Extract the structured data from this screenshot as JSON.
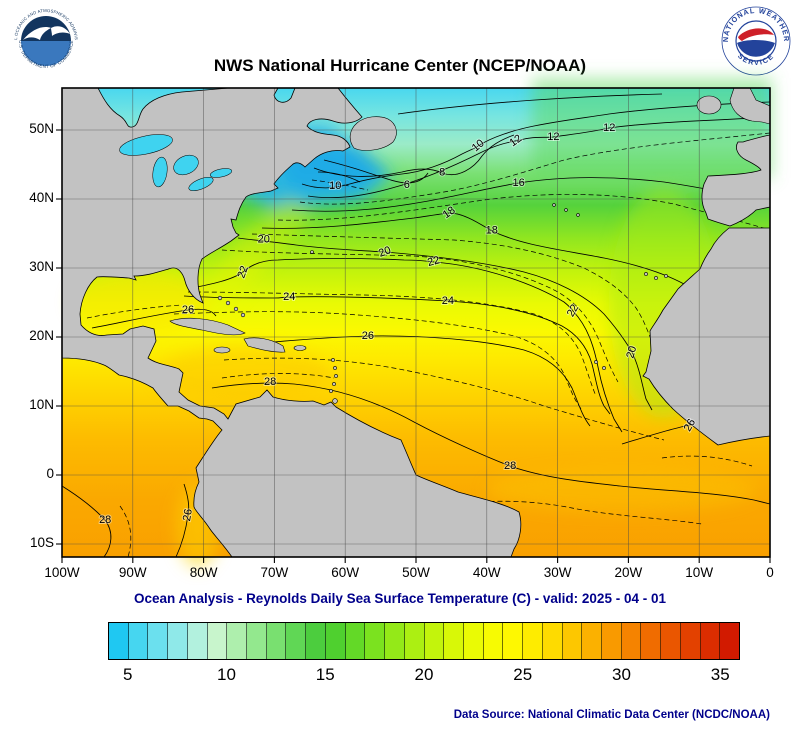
{
  "header": {
    "title": "NWS National Hurricane Center (NCEP/NOAA)",
    "noaa_ring_top": "NATIONAL OCEANIC AND ATMOSPHERIC ADMINISTRATION",
    "noaa_ring_bottom": "U.S. DEPARTMENT OF COMMERCE",
    "nws_ring_top": "NATIONAL WEATHER",
    "nws_ring_bottom": "SERVICE"
  },
  "caption": "Ocean Analysis - Reynolds Daily Sea Surface Temperature (C) - valid: 2025 - 04 - 01",
  "footer": {
    "data_source": "Data Source: National Climatic Data Center (NCDC/NOAA)"
  },
  "map": {
    "lat_ticks": [
      {
        "value": 50,
        "label": "50N"
      },
      {
        "value": 40,
        "label": "40N"
      },
      {
        "value": 30,
        "label": "30N"
      },
      {
        "value": 20,
        "label": "20N"
      },
      {
        "value": 10,
        "label": "10N"
      },
      {
        "value": 0,
        "label": "0"
      },
      {
        "value": -10,
        "label": "10S"
      }
    ],
    "lon_ticks": [
      {
        "value": 100,
        "label": "100W"
      },
      {
        "value": 90,
        "label": "90W"
      },
      {
        "value": 80,
        "label": "80W"
      },
      {
        "value": 70,
        "label": "70W"
      },
      {
        "value": 60,
        "label": "60W"
      },
      {
        "value": 50,
        "label": "50W"
      },
      {
        "value": 40,
        "label": "40W"
      },
      {
        "value": 30,
        "label": "30W"
      },
      {
        "value": 20,
        "label": "20W"
      },
      {
        "value": 10,
        "label": "10W"
      },
      {
        "value": 0,
        "label": "0"
      }
    ],
    "contour_labels": [
      {
        "text": "10",
        "lon": 61.4,
        "lat": 41.9,
        "rot": 0
      },
      {
        "text": "6",
        "lon": 51.3,
        "lat": 42.0,
        "rot": 0
      },
      {
        "text": "8",
        "lon": 46.3,
        "lat": 43.8,
        "rot": 0
      },
      {
        "text": "10",
        "lon": 41.2,
        "lat": 47.7,
        "rot": -40
      },
      {
        "text": "12",
        "lon": 35.9,
        "lat": 48.4,
        "rot": -35
      },
      {
        "text": "12",
        "lon": 30.6,
        "lat": 49.0,
        "rot": 0
      },
      {
        "text": "12",
        "lon": 22.7,
        "lat": 50.3,
        "rot": 0
      },
      {
        "text": "16",
        "lon": 35.5,
        "lat": 42.3,
        "rot": 0
      },
      {
        "text": "18",
        "lon": 45.3,
        "lat": 38.0,
        "rot": -35
      },
      {
        "text": "18",
        "lon": 39.3,
        "lat": 35.4,
        "rot": 0
      },
      {
        "text": "20",
        "lon": 71.5,
        "lat": 34.1,
        "rot": 0
      },
      {
        "text": "20",
        "lon": 54.4,
        "lat": 32.3,
        "rot": -20
      },
      {
        "text": "22",
        "lon": 74.4,
        "lat": 29.4,
        "rot": -70
      },
      {
        "text": "22",
        "lon": 47.5,
        "lat": 30.9,
        "rot": -15
      },
      {
        "text": "22",
        "lon": 27.8,
        "lat": 23.8,
        "rot": -60
      },
      {
        "text": "24",
        "lon": 67.9,
        "lat": 25.8,
        "rot": 0
      },
      {
        "text": "24",
        "lon": 45.5,
        "lat": 25.2,
        "rot": 0
      },
      {
        "text": "26",
        "lon": 82.2,
        "lat": 23.9,
        "rot": 0
      },
      {
        "text": "26",
        "lon": 56.8,
        "lat": 20.1,
        "rot": 0
      },
      {
        "text": "20",
        "lon": 19.5,
        "lat": 17.8,
        "rot": -75
      },
      {
        "text": "28",
        "lon": 70.6,
        "lat": 13.5,
        "rot": 0
      },
      {
        "text": "28",
        "lon": 36.7,
        "lat": 1.3,
        "rot": 0
      },
      {
        "text": "26",
        "lon": 11.3,
        "lat": 7.2,
        "rot": -60
      },
      {
        "text": "28",
        "lon": 93.9,
        "lat": -6.5,
        "rot": 0
      },
      {
        "text": "26",
        "lon": 82.2,
        "lat": -5.8,
        "rot": -80
      }
    ]
  },
  "colorbar": {
    "min": 4,
    "max": 36,
    "tick_values": [
      5,
      10,
      15,
      20,
      25,
      30,
      35
    ],
    "colors": [
      "#1FC8F2",
      "#46D6F0",
      "#6BE0EE",
      "#8FE9E9",
      "#B2F1DE",
      "#C8F5CC",
      "#AEEFAD",
      "#93E88E",
      "#79E070",
      "#60D755",
      "#4CCD3E",
      "#4FD02F",
      "#63D927",
      "#7BE21F",
      "#94E918",
      "#ACEF12",
      "#C3F40C",
      "#D8F807",
      "#EAFB04",
      "#F7FB02",
      "#FEF801",
      "#FEEC00",
      "#FEDB00",
      "#FDC700",
      "#FBB100",
      "#F99A00",
      "#F58300",
      "#F06C00",
      "#EA5600",
      "#E34100",
      "#DB2D00",
      "#D21A00"
    ]
  },
  "chart_data": {
    "type": "heatmap",
    "title": "NWS National Hurricane Center (NCEP/NOAA)",
    "subtitle": "Ocean Analysis - Reynolds Daily Sea Surface Temperature (C) - valid: 2025 - 04 - 01",
    "units": "C",
    "x_ticks": [
      "100W",
      "90W",
      "80W",
      "70W",
      "60W",
      "50W",
      "40W",
      "30W",
      "20W",
      "10W",
      "0"
    ],
    "y_ticks": [
      "10S",
      "0",
      "10N",
      "20N",
      "30N",
      "40N",
      "50N"
    ],
    "colorbar_ticks": [
      5,
      10,
      15,
      20,
      25,
      30,
      35
    ],
    "colorbar_range": [
      4,
      36
    ],
    "labeled_contours_c": [
      6,
      8,
      10,
      12,
      16,
      18,
      20,
      22,
      24,
      26,
      28
    ]
  }
}
